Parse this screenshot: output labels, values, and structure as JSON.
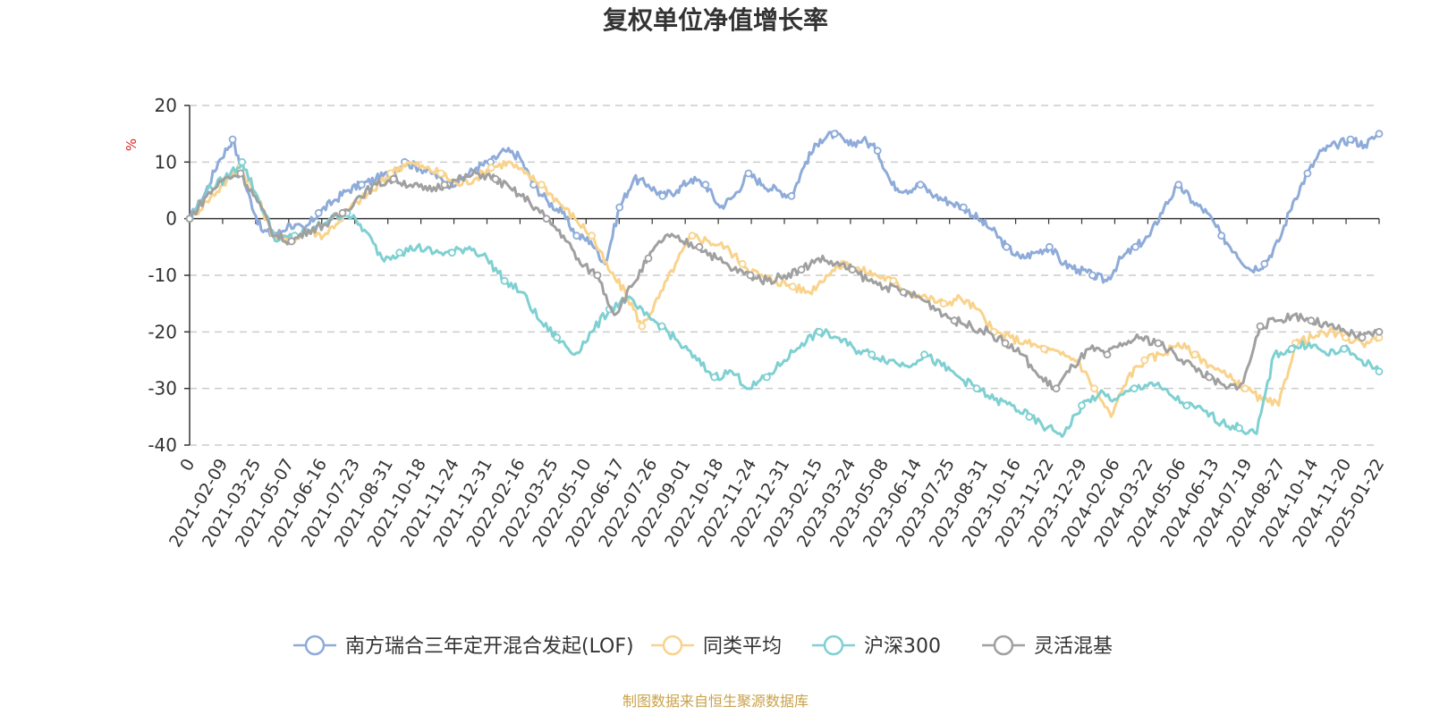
{
  "chart_data": {
    "type": "line",
    "title": "复权单位净值增长率",
    "ylabel": "%",
    "ylim": [
      -40,
      20
    ],
    "yticks": [
      20,
      10,
      0,
      -10,
      -20,
      -30,
      -40
    ],
    "grid": true,
    "legend_position": "bottom",
    "x_tick_labels": [
      "0",
      "2021-02-09",
      "2021-03-25",
      "2021-05-07",
      "2021-06-16",
      "2021-07-23",
      "2021-08-31",
      "2021-10-18",
      "2021-11-24",
      "2021-12-31",
      "2022-02-16",
      "2022-03-25",
      "2022-05-10",
      "2022-06-17",
      "2022-07-26",
      "2022-09-01",
      "2022-10-18",
      "2022-11-24",
      "2022-12-31",
      "2023-02-15",
      "2023-03-24",
      "2023-05-08",
      "2023-06-14",
      "2023-07-25",
      "2023-08-31",
      "2023-10-16",
      "2023-11-22",
      "2023-12-29",
      "2024-02-06",
      "2024-03-22",
      "2024-05-06",
      "2024-06-13",
      "2024-07-19",
      "2024-08-27",
      "2024-10-14",
      "2024-11-20",
      "2025-01-22"
    ],
    "source": "制图数据来自恒生聚源数据库",
    "series": [
      {
        "name": "南方瑞合三年定开混合发起(LOF)",
        "color": "#8eabd9",
        "values": [
          0,
          4,
          10,
          14,
          5,
          -2,
          -3,
          -1,
          -2,
          1,
          3,
          5,
          6,
          7,
          8,
          10,
          9,
          8,
          6,
          7,
          9,
          10,
          12,
          11,
          6,
          3,
          1,
          -3,
          -4,
          -8,
          2,
          7,
          6,
          4,
          5,
          7,
          6,
          2,
          4,
          8,
          6,
          5,
          4,
          10,
          14,
          15,
          13,
          14,
          12,
          6,
          5,
          6,
          4,
          3,
          2,
          0,
          -2,
          -5,
          -7,
          -6,
          -5,
          -8,
          -9,
          -10,
          -11,
          -7,
          -5,
          -3,
          2,
          6,
          3,
          1,
          -3,
          -6,
          -9,
          -8,
          -4,
          3,
          8,
          12,
          13,
          14,
          13,
          15
        ]
      },
      {
        "name": "同类平均",
        "color": "#f9d38c",
        "values": [
          0,
          3,
          6,
          9,
          4,
          -3,
          -4,
          -2,
          -3,
          0,
          3,
          5,
          8,
          10,
          9,
          8,
          6,
          7,
          9,
          10,
          8,
          6,
          3,
          0,
          -3,
          -9,
          -13,
          -19,
          -14,
          -8,
          -3,
          -4,
          -5,
          -8,
          -10,
          -11,
          -12,
          -13,
          -10,
          -8,
          -9,
          -10,
          -11,
          -13,
          -14,
          -15,
          -14,
          -16,
          -20,
          -21,
          -22,
          -23,
          -24,
          -25,
          -30,
          -35,
          -28,
          -25,
          -24,
          -22,
          -24,
          -26,
          -28,
          -30,
          -32,
          -33,
          -22,
          -21,
          -20,
          -21,
          -22,
          -21
        ]
      },
      {
        "name": "沪深300",
        "color": "#7fd0d2",
        "values": [
          0,
          5,
          7,
          10,
          3,
          -4,
          -3,
          -2,
          0,
          1,
          -2,
          -7,
          -6,
          -5,
          -6,
          -6,
          -5,
          -7,
          -11,
          -13,
          -18,
          -21,
          -24,
          -20,
          -16,
          -14,
          -17,
          -19,
          -22,
          -25,
          -28,
          -27,
          -30,
          -28,
          -25,
          -22,
          -20,
          -21,
          -23,
          -24,
          -25,
          -26,
          -24,
          -26,
          -28,
          -30,
          -32,
          -33,
          -35,
          -37,
          -38,
          -33,
          -31,
          -32,
          -30,
          -29,
          -31,
          -33,
          -34,
          -36,
          -37,
          -38,
          -24,
          -23,
          -22,
          -24,
          -23,
          -25,
          -27
        ]
      },
      {
        "name": "灵活混基",
        "color": "#a0a0a0",
        "values": [
          0,
          4,
          7,
          8,
          3,
          -3,
          -4,
          -2,
          -1,
          1,
          4,
          6,
          7,
          6,
          5,
          6,
          7,
          8,
          7,
          5,
          3,
          0,
          -3,
          -8,
          -10,
          -17,
          -12,
          -7,
          -3,
          -4,
          -5,
          -7,
          -9,
          -10,
          -11,
          -10,
          -9,
          -7,
          -8,
          -9,
          -11,
          -12,
          -13,
          -14,
          -16,
          -18,
          -19,
          -20,
          -22,
          -24,
          -28,
          -30,
          -26,
          -23,
          -24,
          -22,
          -21,
          -22,
          -24,
          -26,
          -28,
          -30,
          -29,
          -19,
          -18,
          -17,
          -18,
          -19,
          -20,
          -21,
          -20
        ]
      }
    ]
  }
}
